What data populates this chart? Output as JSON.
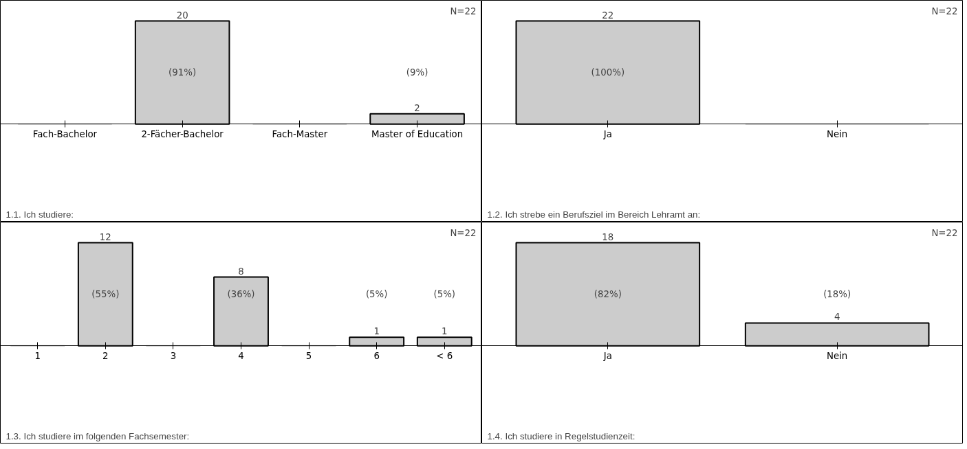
{
  "chart_data": [
    {
      "type": "bar",
      "title": "1.1. Ich studiere:",
      "categories": [
        "Fach-Bachelor",
        "2-Fächer-Bachelor",
        "Fach-Master",
        "Master of Education"
      ],
      "values": [
        0,
        20,
        0,
        2
      ],
      "color": "#cccccc",
      "value_labels": [
        null,
        "20",
        null,
        "2"
      ],
      "annotations": [
        "N=22",
        "(91%)",
        "(9%)"
      ]
    },
    {
      "type": "bar",
      "title": "1.2. Ich strebe ein Berufsziel im Bereich Lehramt an:",
      "categories": [
        "Ja",
        "Nein"
      ],
      "values": [
        22,
        0
      ],
      "color": "#cccccc",
      "value_labels": [
        "22",
        null
      ],
      "annotations": [
        "N=22",
        "(100%)"
      ]
    },
    {
      "type": "bar",
      "title": "1.3. Ich studiere im folgenden Fachsemester:",
      "categories": [
        "1",
        "2",
        "3",
        "4",
        "5",
        "6",
        "< 6"
      ],
      "values": [
        0,
        12,
        0,
        8,
        0,
        1,
        1
      ],
      "color": "#cccccc",
      "value_labels": [
        null,
        "12",
        null,
        "8",
        null,
        "1",
        "1"
      ],
      "annotations": [
        "N=22",
        "(55%)",
        "(36%)",
        "(5%)",
        "(5%)"
      ]
    },
    {
      "type": "bar",
      "title": "1.4. Ich studiere in Regelstudienzeit:",
      "categories": [
        "Ja",
        "Nein"
      ],
      "values": [
        18,
        4
      ],
      "color": "#cccccc",
      "value_labels": [
        "18",
        "4"
      ],
      "annotations": [
        "N=22",
        "(82%)",
        "(18%)"
      ]
    }
  ]
}
